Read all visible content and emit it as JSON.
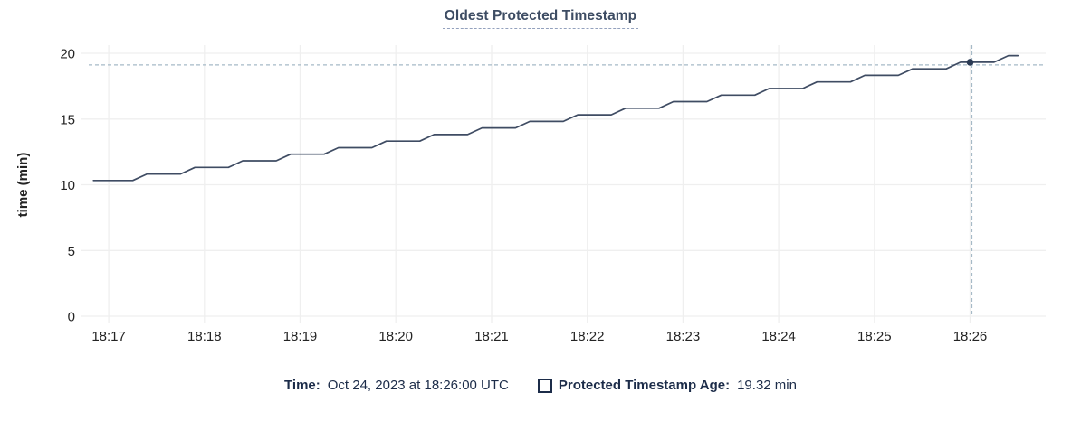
{
  "header": {
    "title": "Oldest Protected Timestamp"
  },
  "colors": {
    "title_text": "#3d4c63",
    "legend_text": "#1c2c49",
    "grid": "#efefef",
    "axis_text": "#242424",
    "line": "#3f4c63",
    "crosshair": "#a6bac7",
    "marker": "#2b3a54"
  },
  "chart_data": {
    "type": "line",
    "title": "Oldest Protected Timestamp",
    "xlabel": "",
    "ylabel": "time (min)",
    "x_unit_note": "x values are minutes after 18:17",
    "xlim": [
      -0.285,
      9.79
    ],
    "ylim": [
      0,
      20
    ],
    "yticks": [
      0,
      5,
      10,
      15,
      20
    ],
    "xticks": [
      0,
      1,
      2,
      3,
      4,
      5,
      6,
      7,
      8,
      9
    ],
    "xticklabels": [
      "18:17",
      "18:18",
      "18:19",
      "18:20",
      "18:21",
      "18:22",
      "18:23",
      "18:24",
      "18:25",
      "18:26"
    ],
    "grid": true,
    "legend_position": "bottom",
    "series": [
      {
        "name": "Protected Timestamp Age",
        "unit": "min",
        "color": "#3f4c63",
        "points": [
          [
            -0.16,
            10.32
          ],
          [
            0.25,
            10.32
          ],
          [
            0.4,
            10.82
          ],
          [
            0.75,
            10.82
          ],
          [
            0.9,
            11.32
          ],
          [
            1.25,
            11.32
          ],
          [
            1.4,
            11.82
          ],
          [
            1.75,
            11.82
          ],
          [
            1.9,
            12.32
          ],
          [
            2.25,
            12.32
          ],
          [
            2.4,
            12.82
          ],
          [
            2.75,
            12.82
          ],
          [
            2.9,
            13.32
          ],
          [
            3.25,
            13.32
          ],
          [
            3.4,
            13.82
          ],
          [
            3.75,
            13.82
          ],
          [
            3.9,
            14.32
          ],
          [
            4.25,
            14.32
          ],
          [
            4.4,
            14.82
          ],
          [
            4.75,
            14.82
          ],
          [
            4.9,
            15.32
          ],
          [
            5.25,
            15.32
          ],
          [
            5.4,
            15.82
          ],
          [
            5.75,
            15.82
          ],
          [
            5.9,
            16.32
          ],
          [
            6.25,
            16.32
          ],
          [
            6.4,
            16.82
          ],
          [
            6.75,
            16.82
          ],
          [
            6.9,
            17.32
          ],
          [
            7.25,
            17.32
          ],
          [
            7.4,
            17.82
          ],
          [
            7.75,
            17.82
          ],
          [
            7.9,
            18.32
          ],
          [
            8.25,
            18.32
          ],
          [
            8.4,
            18.82
          ],
          [
            8.75,
            18.82
          ],
          [
            8.9,
            19.32
          ],
          [
            9.25,
            19.32
          ],
          [
            9.4,
            19.82
          ],
          [
            9.5,
            19.82
          ]
        ]
      }
    ],
    "hover": {
      "x": 9.0,
      "y": 19.32,
      "x_time": "18:26",
      "crosshair_color": "#a6bac7",
      "marker_color": "#2b3a54"
    }
  },
  "tooltip": {
    "time_label": "Time:",
    "time_value": "Oct 24, 2023 at 18:26:00 UTC",
    "series_label": "Protected Timestamp Age:",
    "series_value": "19.32 min"
  }
}
